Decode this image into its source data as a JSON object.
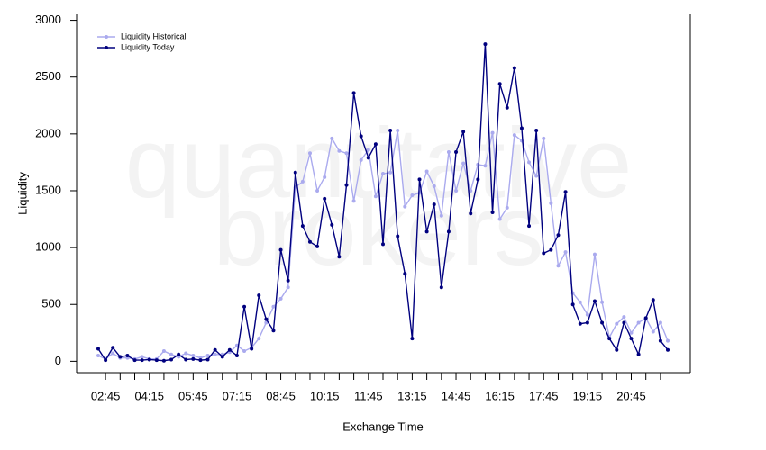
{
  "chart_data": {
    "type": "line",
    "xlabel": "Exchange Time",
    "ylabel": "Liquidity",
    "watermark": [
      "quantitative",
      "brokers"
    ],
    "categories": [
      null,
      "02:45",
      null,
      null,
      null,
      null,
      null,
      "04:15",
      null,
      null,
      null,
      null,
      null,
      "05:45",
      null,
      null,
      null,
      null,
      null,
      "07:15",
      null,
      null,
      null,
      null,
      null,
      "08:45",
      null,
      null,
      null,
      null,
      null,
      "10:15",
      null,
      null,
      null,
      null,
      null,
      "11:45",
      null,
      null,
      null,
      null,
      null,
      "13:15",
      null,
      null,
      null,
      null,
      null,
      "14:45",
      null,
      null,
      null,
      null,
      null,
      "16:15",
      null,
      null,
      null,
      null,
      null,
      "17:45",
      null,
      null,
      null,
      null,
      null,
      "19:15",
      null,
      null,
      null,
      null,
      null,
      "20:45",
      null,
      null,
      null,
      null,
      null
    ],
    "series": [
      {
        "name": "Liquidity Historical",
        "color": "#aaaaee",
        "values": [
          50,
          20,
          70,
          30,
          30,
          20,
          40,
          20,
          20,
          90,
          60,
          40,
          70,
          50,
          30,
          50,
          60,
          60,
          80,
          140,
          90,
          120,
          200,
          340,
          480,
          550,
          650,
          1530,
          1580,
          1830,
          1500,
          1620,
          1960,
          1850,
          1830,
          1410,
          1770,
          1860,
          1450,
          1650,
          1660,
          2030,
          1360,
          1460,
          1480,
          1670,
          1540,
          1280,
          1840,
          1500,
          1740,
          1500,
          1730,
          1720,
          2010,
          1250,
          1350,
          1990,
          1940,
          1750,
          1630,
          1960,
          1390,
          840,
          960,
          600,
          520,
          410,
          940,
          520,
          210,
          330,
          390,
          250,
          340,
          380,
          260,
          340,
          180
        ]
      },
      {
        "name": "Liquidity Today",
        "color": "#00007f",
        "values": [
          110,
          10,
          120,
          40,
          50,
          10,
          10,
          15,
          10,
          5,
          15,
          60,
          15,
          20,
          10,
          15,
          100,
          40,
          100,
          50,
          480,
          110,
          580,
          370,
          270,
          980,
          710,
          1660,
          1190,
          1050,
          1010,
          1430,
          1200,
          920,
          1550,
          2360,
          1980,
          1790,
          1910,
          1030,
          2030,
          1100,
          770,
          200,
          1600,
          1140,
          1380,
          650,
          1140,
          1840,
          2020,
          1300,
          1600,
          2790,
          1310,
          2440,
          2230,
          2580,
          2050,
          1190,
          2030,
          950,
          980,
          1110,
          1490,
          500,
          330,
          340,
          530,
          340,
          200,
          100,
          340,
          200,
          60,
          380,
          540,
          180,
          100
        ]
      }
    ],
    "ylim": [
      -100,
      3060
    ],
    "yticks": [
      0,
      500,
      1000,
      1500,
      2000,
      2500,
      3000
    ],
    "legend": "upper left"
  }
}
